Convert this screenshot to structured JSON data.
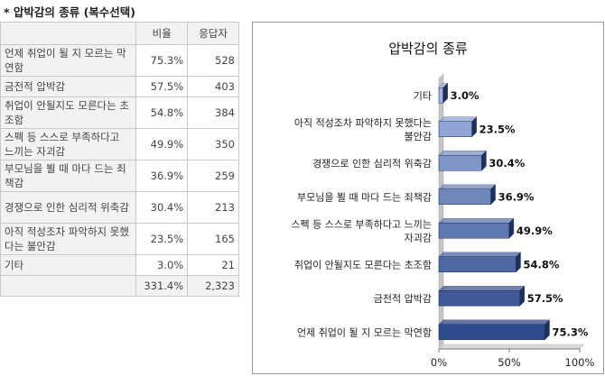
{
  "page": {
    "title": "* 압박감의 종류 (복수선택)"
  },
  "table": {
    "headers": [
      "",
      "비율",
      "응답자"
    ],
    "rows": [
      {
        "label": "언제 취업이 될 지 모르는 막연함",
        "ratio": "75.3%",
        "count": "528"
      },
      {
        "label": "금전적 압박감",
        "ratio": "57.5%",
        "count": "403"
      },
      {
        "label": "취업이 안될지도 모른다는 초조함",
        "ratio": "54.8%",
        "count": "384"
      },
      {
        "label": "스펙 등 스스로 부족하다고 느끼는 자괴감",
        "ratio": "49.9%",
        "count": "350"
      },
      {
        "label": "부모님을 뵐 때 마다 드는 죄책감",
        "ratio": "36.9%",
        "count": "259"
      },
      {
        "label": "경쟁으로 인한 심리적 위축감",
        "ratio": "30.4%",
        "count": "213"
      },
      {
        "label": "아직 적성조차 파악하지 못했다는 불안감",
        "ratio": "23.5%",
        "count": "165"
      },
      {
        "label": "기타",
        "ratio": "3.0%",
        "count": "21"
      }
    ],
    "total": {
      "label": "",
      "ratio": "331.4%",
      "count": "2,323"
    }
  },
  "colors": {
    "bar_dark": "#2e4a8a",
    "bar_light": "#9fb3de",
    "bar_stroke": "#1f2f5c"
  },
  "chart_data": {
    "type": "bar",
    "orientation": "horizontal",
    "title": "압박감의 종류",
    "categories": [
      "기타",
      "아직 적성조차 파악하지 못했다는 불안감",
      "경쟁으로 인한 심리적 위축감",
      "부모님을 뵐 때 마다 드는 죄책감",
      "스펙 등 스스로 부족하다고 느끼는 자괴감",
      "취업이 안될지도 모른다는 초조함",
      "금전적 압박감",
      "언제 취업이 될 지 모르는 막연함"
    ],
    "category_labels": [
      [
        "기타"
      ],
      [
        "아직 적성조차 파악하지 못했다는",
        "불안감"
      ],
      [
        "경쟁으로 인한 심리적 위축감"
      ],
      [
        "부모님을 뵐 때 마다 드는 죄책감"
      ],
      [
        "스펙 등 스스로 부족하다고 느끼는",
        "자괴감"
      ],
      [
        "취업이 안될지도 모른다는 초조함"
      ],
      [
        "금전적 압박감"
      ],
      [
        "언제 취업이 될 지 모르는 막연함"
      ]
    ],
    "values": [
      3.0,
      23.5,
      30.4,
      36.9,
      49.9,
      54.8,
      57.5,
      75.3
    ],
    "value_labels": [
      "3.0%",
      "23.5%",
      "30.4%",
      "36.9%",
      "49.9%",
      "54.8%",
      "57.5%",
      "75.3%"
    ],
    "xlim": [
      0,
      100
    ],
    "x_ticks": [
      0,
      50,
      100
    ],
    "x_tick_labels": [
      "0%",
      "50%",
      "100%"
    ],
    "grid": false,
    "legend": "none"
  }
}
